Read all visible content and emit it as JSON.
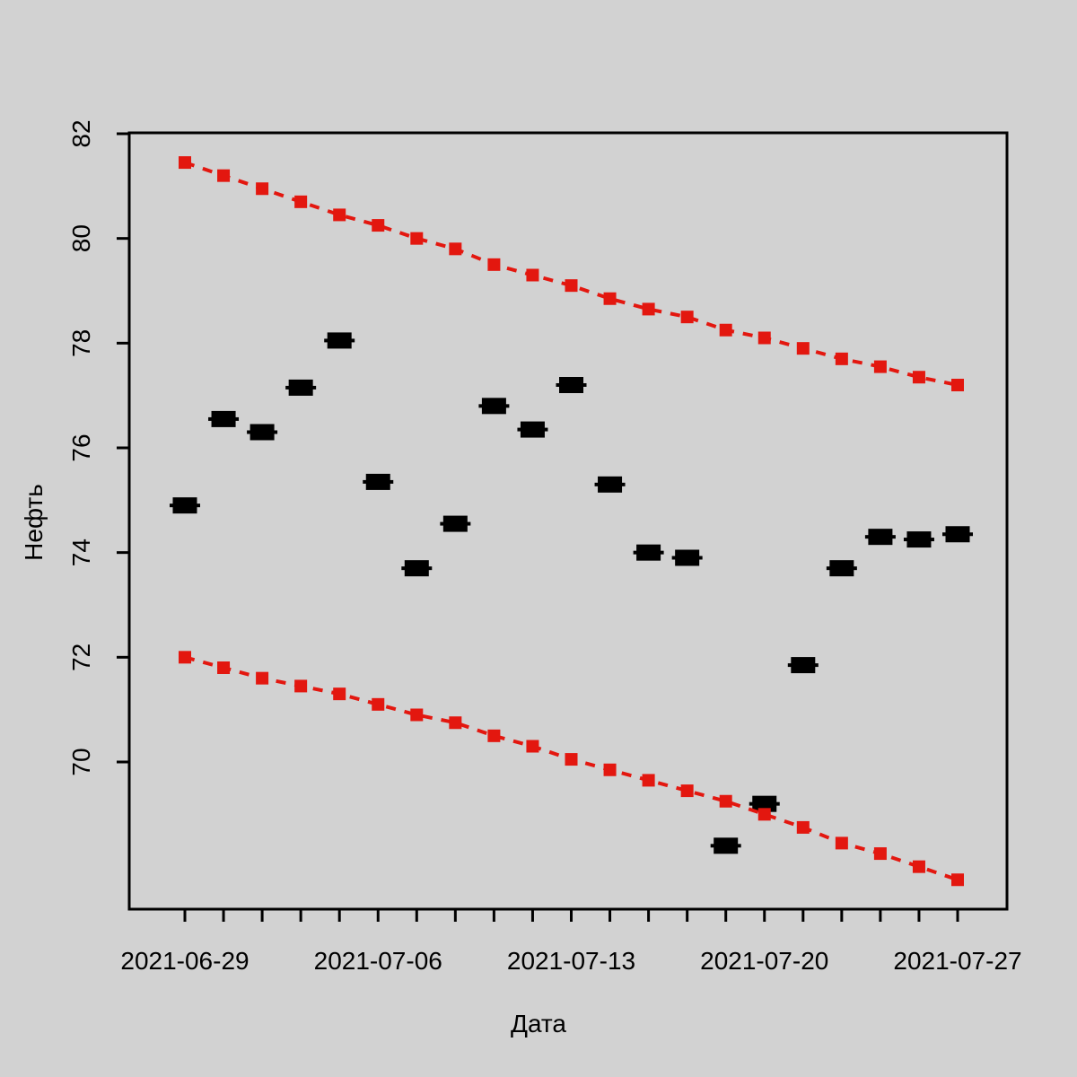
{
  "figure": {
    "background_color": "#d2d2d2",
    "frame_color": "#000000"
  },
  "chart_data": {
    "type": "scatter",
    "title": "",
    "xlabel": "Дата",
    "ylabel": "Нефть",
    "grid": false,
    "legend_position": "none",
    "point_color_observed": "#000000",
    "point_color_bands": "#e3170f",
    "band_line_style": "dashed",
    "ylim": [
      67.2,
      82.05
    ],
    "y_ticks": [
      70,
      72,
      74,
      76,
      78,
      80,
      82
    ],
    "x": [
      "2021-06-29",
      "2021-06-30",
      "2021-07-01",
      "2021-07-02",
      "2021-07-05",
      "2021-07-06",
      "2021-07-07",
      "2021-07-08",
      "2021-07-09",
      "2021-07-12",
      "2021-07-13",
      "2021-07-14",
      "2021-07-15",
      "2021-07-16",
      "2021-07-19",
      "2021-07-20",
      "2021-07-21",
      "2021-07-22",
      "2021-07-23",
      "2021-07-26",
      "2021-07-27"
    ],
    "x_labeled_tick_indices": [
      0,
      5,
      10,
      15,
      20
    ],
    "x_labeled_tick_labels": [
      "2021-06-29",
      "2021-07-06",
      "2021-07-13",
      "2021-07-20",
      "2021-07-27"
    ],
    "series": [
      {
        "name": "observed",
        "marker": "filled-square-large",
        "color": "#000000",
        "connected": false,
        "values": [
          74.9,
          76.55,
          76.3,
          77.15,
          78.05,
          75.35,
          73.7,
          74.55,
          76.8,
          76.35,
          77.2,
          75.3,
          74.0,
          73.9,
          68.4,
          69.2,
          71.85,
          73.7,
          74.3,
          74.25,
          74.35
        ]
      },
      {
        "name": "upper_band",
        "marker": "filled-square-small",
        "color": "#e3170f",
        "connected": true,
        "values": [
          81.45,
          81.2,
          80.95,
          80.7,
          80.45,
          80.25,
          80.0,
          79.8,
          79.5,
          79.3,
          79.1,
          78.85,
          78.65,
          78.5,
          78.25,
          78.1,
          77.9,
          77.7,
          77.55,
          77.35,
          77.2
        ]
      },
      {
        "name": "lower_band",
        "marker": "filled-square-small",
        "color": "#e3170f",
        "connected": true,
        "values": [
          72.0,
          71.8,
          71.6,
          71.45,
          71.3,
          71.1,
          70.9,
          70.75,
          70.5,
          70.3,
          70.05,
          69.85,
          69.65,
          69.45,
          69.25,
          69.0,
          68.75,
          68.45,
          68.25,
          68.0,
          67.75
        ]
      }
    ]
  }
}
